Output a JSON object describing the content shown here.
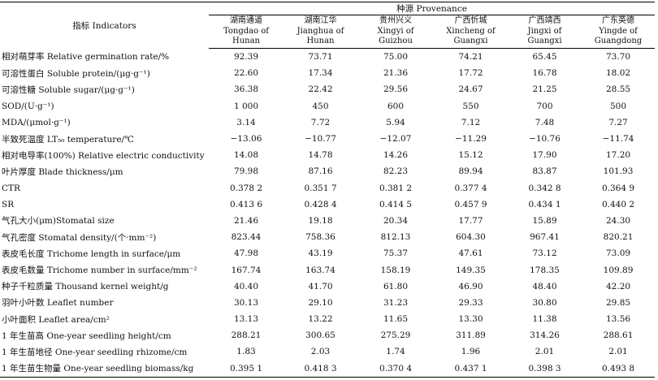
{
  "table": {
    "indicator_header": "指标 Indicators",
    "provenance_header": "种源 Provenance",
    "columns": [
      {
        "zh": "湖南通道",
        "en1": "Tongdao of",
        "en2": "Hunan"
      },
      {
        "zh": "湖南江华",
        "en1": "Jianghua of",
        "en2": "Hunan"
      },
      {
        "zh": "贵州兴义",
        "en1": "Xingyi of",
        "en2": "Guizhou"
      },
      {
        "zh": "广西忻城",
        "en1": "Xincheng of",
        "en2": "Guangxi"
      },
      {
        "zh": "广西靖西",
        "en1": "Jingxi of",
        "en2": "Guangxi"
      },
      {
        "zh": "广东英德",
        "en1": "Yingde of",
        "en2": "Guangdong"
      }
    ],
    "rows": [
      {
        "label": "相对萌芽率 Relative germination rate/%",
        "values": [
          "92.39",
          "73.71",
          "75.00",
          "74.21",
          "65.45",
          "73.70"
        ]
      },
      {
        "label": "可溶性蛋白 Soluble protein/(μg·g⁻¹)",
        "values": [
          "22.60",
          "17.34",
          "21.36",
          "17.72",
          "16.78",
          "18.02"
        ]
      },
      {
        "label": "可溶性糖 Soluble sugar/(μg·g⁻¹)",
        "values": [
          "36.38",
          "22.42",
          "29.56",
          "24.67",
          "21.25",
          "28.55"
        ]
      },
      {
        "label": "SOD/(U·g⁻¹)",
        "values": [
          "1 000",
          "450",
          "600",
          "550",
          "700",
          "500"
        ]
      },
      {
        "label": "MDA/(μmol·g⁻¹)",
        "values": [
          "3.14",
          "7.72",
          "5.94",
          "7.12",
          "7.48",
          "7.27"
        ]
      },
      {
        "label": "半致死温度 LT₅₀ temperature/℃",
        "values": [
          "−13.06",
          "−10.77",
          "−12.07",
          "−11.29",
          "−10.76",
          "−11.74"
        ]
      },
      {
        "label": "相对电导率(100%) Relative electric conductivity",
        "values": [
          "14.08",
          "14.78",
          "14.26",
          "15.12",
          "17.90",
          "17.20"
        ]
      },
      {
        "label": "叶片厚度 Blade thickness/μm",
        "values": [
          "79.98",
          "87.16",
          "82.23",
          "89.94",
          "83.87",
          "101.93"
        ]
      },
      {
        "label": "CTR",
        "values": [
          "0.378 2",
          "0.351 7",
          "0.381 2",
          "0.377 4",
          "0.342 8",
          "0.364 9"
        ]
      },
      {
        "label": "SR",
        "values": [
          "0.413 6",
          "0.428 4",
          "0.414 5",
          "0.457 9",
          "0.434 1",
          "0.440 2"
        ]
      },
      {
        "label": "气孔大小(μm)Stomatal size",
        "values": [
          "21.46",
          "19.18",
          "20.34",
          "17.77",
          "15.89",
          "24.30"
        ]
      },
      {
        "label": "气孔密度 Stomatal density/(个·mm⁻²)",
        "values": [
          "823.44",
          "758.36",
          "812.13",
          "604.30",
          "967.41",
          "820.21"
        ]
      },
      {
        "label": "表皮毛长度 Trichome length in surface/μm",
        "values": [
          "47.98",
          "43.19",
          "75.37",
          "47.61",
          "73.12",
          "73.09"
        ]
      },
      {
        "label": "表皮毛数量 Trichome number in surface/mm⁻²",
        "values": [
          "167.74",
          "163.74",
          "158.19",
          "149.35",
          "178.35",
          "109.89"
        ]
      },
      {
        "label": "种子千粒质量 Thousand kernel weight/g",
        "values": [
          "40.40",
          "41.70",
          "61.80",
          "46.90",
          "48.40",
          "42.20"
        ]
      },
      {
        "label": "羽叶小叶数 Leaflet number",
        "values": [
          "30.13",
          "29.10",
          "31.23",
          "29.33",
          "30.80",
          "29.85"
        ]
      },
      {
        "label": "小叶面积 Leaflet area/cm²",
        "values": [
          "13.13",
          "13.22",
          "11.65",
          "13.30",
          "11.38",
          "13.56"
        ]
      },
      {
        "label": "1 年生苗高 One-year seedling height/cm",
        "values": [
          "288.21",
          "300.65",
          "275.29",
          "311.89",
          "314.26",
          "288.61"
        ]
      },
      {
        "label": "1 年生苗地径 One-year seedling rhizome/cm",
        "values": [
          "1.83",
          "2.03",
          "1.74",
          "1.96",
          "2.01",
          "2.01"
        ]
      },
      {
        "label": "1 年生苗生物量 One-year seedling biomass/kg",
        "values": [
          "0.395 1",
          "0.418 3",
          "0.370 4",
          "0.437 1",
          "0.398 3",
          "0.493 8"
        ]
      }
    ]
  }
}
